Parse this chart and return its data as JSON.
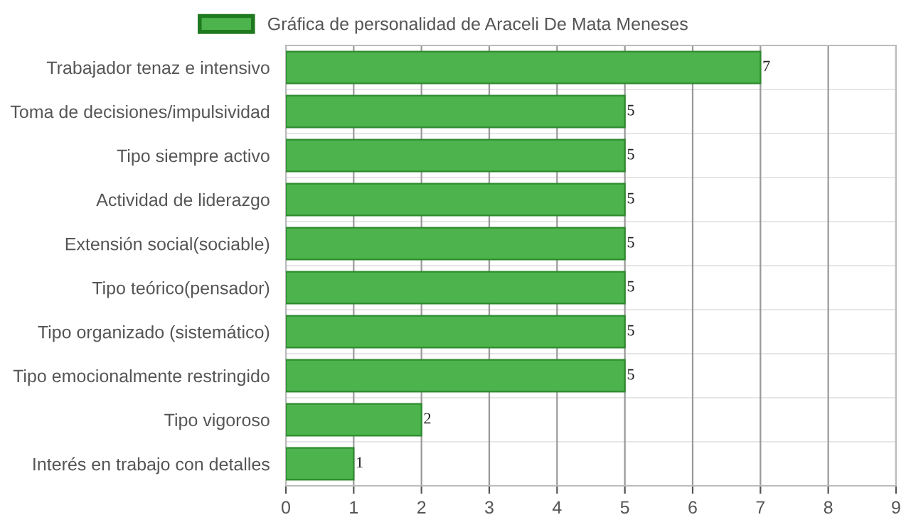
{
  "chart_data": {
    "type": "bar",
    "orientation": "horizontal",
    "categories": [
      "Trabajador tenaz e intensivo",
      "Toma de decisiones/impulsividad",
      "Tipo siempre activo",
      "Actividad de liderazgo",
      "Extensión social(sociable)",
      "Tipo teórico(pensador)",
      "Tipo organizado (sistemático)",
      "Tipo emocionalmente restringido",
      "Tipo vigoroso",
      "Interés en trabajo con detalles"
    ],
    "series": [
      {
        "name": "Gráfica de personalidad de Araceli De Mata Meneses",
        "color": "#4db44d",
        "values": [
          7,
          5,
          5,
          5,
          5,
          5,
          5,
          5,
          2,
          1
        ]
      }
    ],
    "xlim": [
      0,
      9
    ],
    "xticks": [
      0,
      1,
      2,
      3,
      4,
      5,
      6,
      7,
      8,
      9
    ],
    "grid": true,
    "legend": "top",
    "data_labels": true
  }
}
